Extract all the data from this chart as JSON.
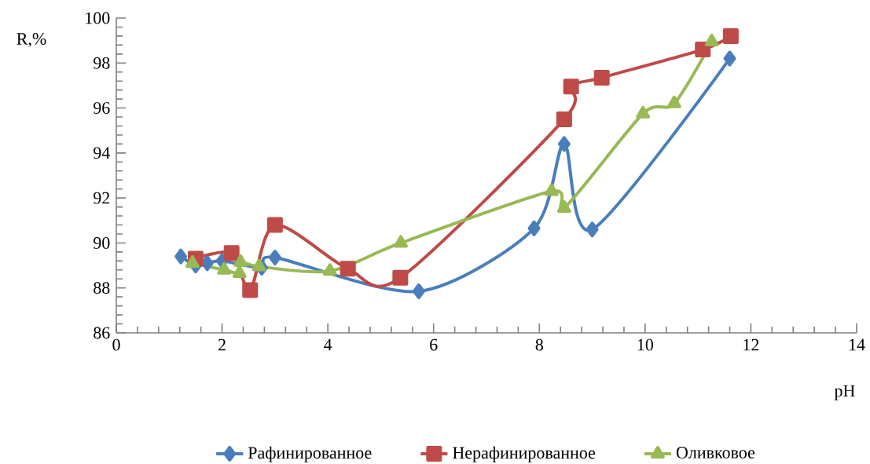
{
  "chart_data": {
    "type": "line",
    "xlabel": "pH",
    "ylabel": "R,%",
    "xlim": [
      0,
      14
    ],
    "xticks": [
      0,
      2,
      4,
      6,
      8,
      10,
      12,
      14
    ],
    "ylim": [
      86,
      100
    ],
    "yticks": [
      86,
      88,
      90,
      92,
      94,
      96,
      98,
      100
    ],
    "grid": false,
    "legend": "bottom",
    "series": [
      {
        "name": "Рафинированное",
        "color": "#4a7ebb",
        "marker": "diamond",
        "x": [
          1.22,
          1.5,
          1.72,
          2.0,
          2.75,
          3.0,
          5.72,
          7.9,
          8.47,
          9.0,
          11.6
        ],
        "values": [
          89.4,
          89.0,
          89.1,
          89.2,
          88.9,
          89.35,
          87.85,
          90.65,
          94.4,
          90.6,
          98.2
        ]
      },
      {
        "name": "Нерафинированное",
        "color": "#be4b48",
        "marker": "square",
        "x": [
          1.5,
          2.18,
          2.53,
          3.0,
          4.38,
          5.37,
          8.47,
          8.6,
          9.18,
          11.09,
          11.62
        ],
        "values": [
          89.3,
          89.55,
          87.9,
          90.8,
          88.85,
          88.45,
          95.5,
          96.95,
          97.35,
          98.6,
          99.2
        ]
      },
      {
        "name": "Оливковое",
        "color": "#98b954",
        "marker": "triangle",
        "x": [
          1.44,
          2.04,
          2.33,
          2.35,
          2.7,
          4.04,
          5.38,
          8.23,
          8.47,
          9.96,
          10.55,
          11.26
        ],
        "values": [
          89.1,
          88.8,
          88.65,
          89.15,
          88.95,
          88.75,
          90.0,
          92.3,
          91.55,
          95.75,
          96.2,
          98.95
        ]
      }
    ]
  }
}
